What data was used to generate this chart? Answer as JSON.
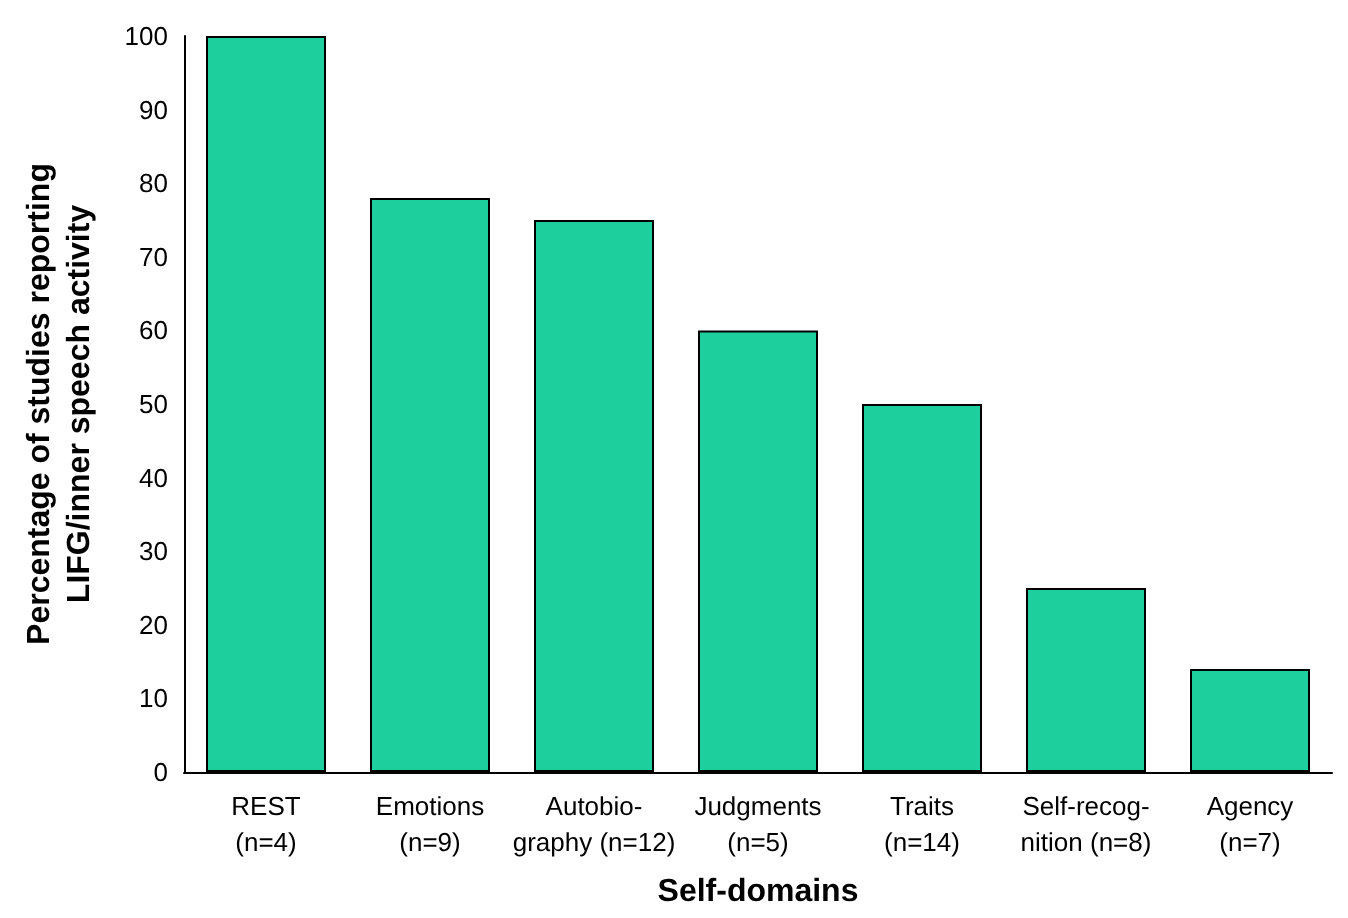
{
  "chart_data": {
    "type": "bar",
    "categories": [
      "REST\n(n=4)",
      "Emotions\n(n=9)",
      "Autobio-\ngraphy (n=12)",
      "Judgments\n(n=5)",
      "Traits\n(n=14)",
      "Self-recog-\nnition (n=8)",
      "Agency\n(n=7)"
    ],
    "values": [
      100,
      78,
      75,
      60,
      50,
      25,
      14
    ],
    "color": "#1ccf9c",
    "xlabel": "Self-domains",
    "ylabel": "Percentage of studies reporting\nLIFG/inner speech activity",
    "ylim": [
      0,
      100
    ],
    "yticks": [
      0,
      10,
      20,
      30,
      40,
      50,
      60,
      70,
      80,
      90,
      100
    ],
    "grid": false
  }
}
